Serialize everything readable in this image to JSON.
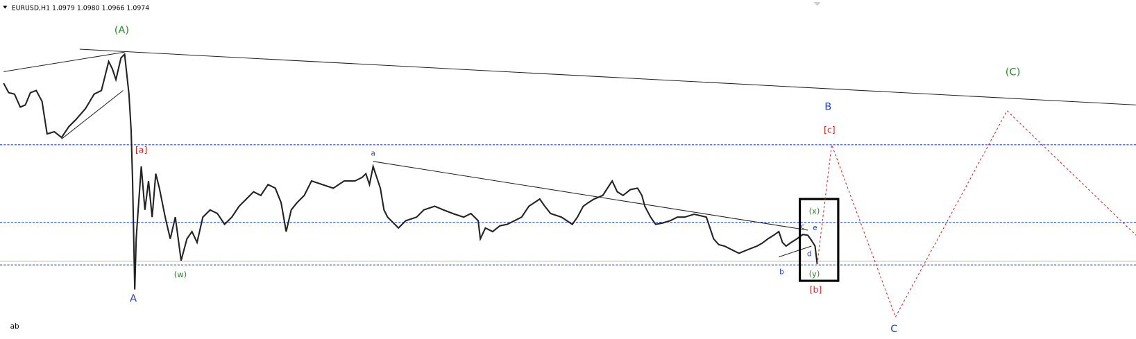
{
  "header": {
    "symbol": "EURUSD,H1",
    "prices": [
      "1.0979",
      "1.0980",
      "1.0966",
      "1.0974"
    ]
  },
  "labels": [
    "(A)",
    "(C)",
    "B",
    "[c]",
    "[a]",
    "a",
    "c",
    "e",
    "(x)",
    "d",
    "b",
    "(y)",
    "[b]",
    "(w)",
    "A",
    "C"
  ],
  "footer": "ab"
}
